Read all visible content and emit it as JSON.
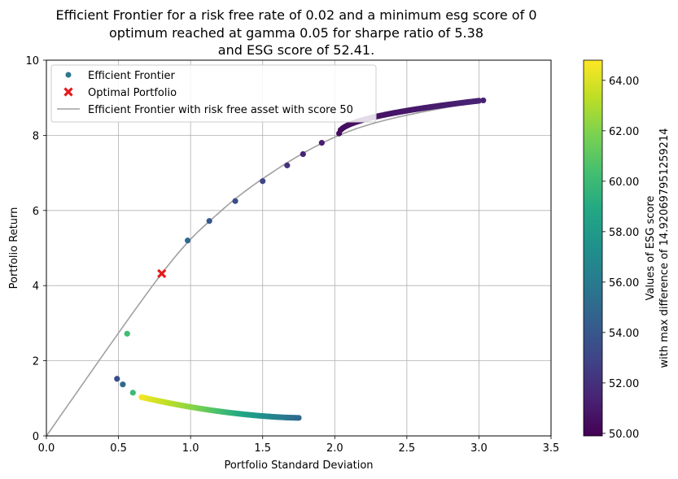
{
  "chart_data": {
    "type": "scatter",
    "title_lines": [
      "Efficient Frontier for a risk free rate of 0.02 and a minimum esg score of 0",
      "optimum reached at gamma 0.05 for sharpe ratio of 5.38",
      "and ESG score of 52.41."
    ],
    "xlabel": "Portfolio Standard Deviation",
    "ylabel": "Portfolio Return",
    "xlim": [
      0.0,
      3.5
    ],
    "ylim": [
      0,
      10
    ],
    "xticks": [
      "0.0",
      "0.5",
      "1.0",
      "1.5",
      "2.0",
      "2.5",
      "3.0",
      "3.5"
    ],
    "yticks": [
      "0",
      "2",
      "4",
      "6",
      "8",
      "10"
    ],
    "grid": true,
    "legend_position": "top-left",
    "legend": [
      {
        "label": "Efficient Frontier",
        "marker": "dot",
        "color": "#2a788e"
      },
      {
        "label": "Optimal Portfolio",
        "marker": "x",
        "color": "#e41a1c"
      },
      {
        "label": "Efficient Frontier with risk free asset with score 50",
        "marker": "line",
        "color": "#a0a0a0"
      }
    ],
    "colorbar": {
      "label_lines": [
        "Values of ESG score",
        "with max difference of 14.920697951259214"
      ],
      "range": [
        49.9,
        64.8
      ],
      "ticks": [
        "50.00",
        "52.00",
        "54.00",
        "56.00",
        "58.00",
        "60.00",
        "62.00",
        "64.00"
      ],
      "colormap": "viridis"
    },
    "optimal_portfolio": {
      "x": 0.8,
      "y": 4.32,
      "color": "#e41a1c"
    },
    "risk_free_line": {
      "points": [
        [
          0.0,
          0.0
        ],
        [
          0.8,
          4.32
        ],
        [
          1.2,
          5.95
        ],
        [
          1.6,
          7.1
        ],
        [
          2.0,
          7.95
        ],
        [
          2.4,
          8.45
        ],
        [
          3.0,
          8.9
        ]
      ],
      "color": "#a0a0a0"
    },
    "series": [
      {
        "name": "Efficient Frontier",
        "points": [
          {
            "x": 0.49,
            "y": 1.52,
            "esg": 53.5
          },
          {
            "x": 0.53,
            "y": 1.37,
            "esg": 55.0
          },
          {
            "x": 0.56,
            "y": 2.72,
            "esg": 60.2
          },
          {
            "x": 0.6,
            "y": 1.15,
            "esg": 60.0
          },
          {
            "x": 0.98,
            "y": 5.2,
            "esg": 55.0
          },
          {
            "x": 1.13,
            "y": 5.72,
            "esg": 54.0
          },
          {
            "x": 1.31,
            "y": 6.25,
            "esg": 53.5
          },
          {
            "x": 1.5,
            "y": 6.78,
            "esg": 53.0
          },
          {
            "x": 1.67,
            "y": 7.2,
            "esg": 52.0
          },
          {
            "x": 1.78,
            "y": 7.5,
            "esg": 51.5
          },
          {
            "x": 1.91,
            "y": 7.8,
            "esg": 51.2
          },
          {
            "x": 3.03,
            "y": 8.93,
            "esg": 51.3
          }
        ],
        "lower_arc": {
          "x_from": 0.66,
          "x_to": 1.75,
          "y_from": 1.03,
          "y_to": 0.48,
          "count": 90,
          "esg_from": 64.6,
          "esg_to": 55.0,
          "esg_mid": 62.0
        },
        "upper_arc": {
          "x_from": 2.03,
          "x_to": 3.0,
          "y_from": 8.05,
          "y_to": 8.92,
          "count": 90,
          "esg_from": 50.4,
          "esg_to": 51.4
        }
      }
    ]
  }
}
